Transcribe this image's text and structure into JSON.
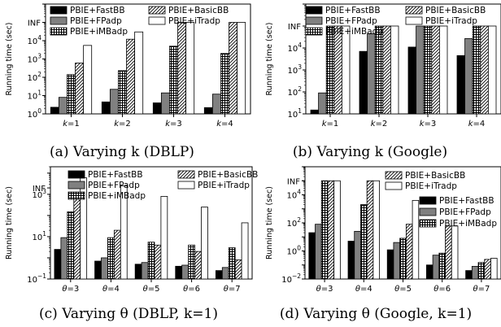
{
  "chart_data": [
    {
      "type": "bar",
      "caption": "(a) Varying k (DBLP)",
      "ylabel": "Running time (sec)",
      "yscale": "log",
      "ylim": [
        1,
        1000000
      ],
      "y_ticks": [
        "10^0",
        "10^1",
        "10^2",
        "10^3",
        "10^4"
      ],
      "y_special_label": "INF",
      "categories": [
        "k=1",
        "k=2",
        "k=3",
        "k=4"
      ],
      "series": [
        {
          "name": "PBIE+FastBB",
          "values": [
            2.3,
            4.5,
            4,
            2.2
          ]
        },
        {
          "name": "PBIE+FPadp",
          "values": [
            8,
            22,
            14,
            12
          ]
        },
        {
          "name": "PBIE+iMBadp",
          "values": [
            140,
            230,
            5000,
            2000
          ]
        },
        {
          "name": "PBIE+BasicBB",
          "values": [
            600,
            12000,
            "INF",
            "INF"
          ]
        },
        {
          "name": "PBIE+iTradp",
          "values": [
            5500,
            30000,
            "INF",
            "INF"
          ]
        }
      ],
      "legend": [
        "PBIE+FastBB",
        "PBIE+BasicBB",
        "PBIE+FPadp",
        "PBIE+iTradp",
        "PBIE+iMBadp"
      ],
      "legend_position": "top-left"
    },
    {
      "type": "bar",
      "caption": "(b) Varying k (Google)",
      "ylabel": "Running time (sec)",
      "yscale": "log",
      "ylim": [
        10,
        1000000
      ],
      "y_ticks": [
        "10^1",
        "10^2",
        "10^3",
        "10^4"
      ],
      "y_special_label": "INF",
      "categories": [
        "k=1",
        "k=2",
        "k=3",
        "k=4"
      ],
      "series": [
        {
          "name": "PBIE+FastBB",
          "values": [
            15,
            7000,
            11000,
            4500
          ]
        },
        {
          "name": "PBIE+FPadp",
          "values": [
            90,
            45000,
            "INF",
            27000
          ]
        },
        {
          "name": "PBIE+iMBadp",
          "values": [
            "INF",
            "INF",
            "INF",
            "INF"
          ]
        },
        {
          "name": "PBIE+BasicBB",
          "values": [
            "INF",
            "INF",
            "INF",
            "INF"
          ]
        },
        {
          "name": "PBIE+iTradp",
          "values": [
            "INF",
            "INF",
            "INF",
            "INF"
          ]
        }
      ],
      "legend": [
        "PBIE+FastBB",
        "PBIE+BasicBB",
        "PBIE+FPadp",
        "PBIE+iTradp",
        "PBIE+iMBadp"
      ],
      "legend_position": "top-left"
    },
    {
      "type": "bar",
      "caption": "(c) Varying θ (DBLP, k=1)",
      "ylabel": "Running time (sec)",
      "yscale": "log",
      "ylim": [
        0.1,
        20000
      ],
      "y_ticks": [
        "10^-1",
        "10^1",
        "10^3"
      ],
      "y_special_label": "INF",
      "categories": [
        "θ=3",
        "θ=4",
        "θ=5",
        "θ=6",
        "θ=7"
      ],
      "series": [
        {
          "name": "PBIE+FastBB",
          "values": [
            2.5,
            0.7,
            0.5,
            0.4,
            0.25
          ]
        },
        {
          "name": "PBIE+FPadp",
          "values": [
            9,
            1,
            0.6,
            0.45,
            0.35
          ]
        },
        {
          "name": "PBIE+iMBadp",
          "values": [
            150,
            9,
            5.5,
            4,
            3
          ]
        },
        {
          "name": "PBIE+BasicBB",
          "values": [
            700,
            20,
            4,
            2,
            0.8
          ]
        },
        {
          "name": "PBIE+iTradp",
          "values": [
            6000,
            2500,
            800,
            250,
            45
          ]
        }
      ],
      "legend": [
        "PBIE+FastBB",
        "PBIE+BasicBB",
        "PBIE+FPadp",
        "PBIE+iTradp",
        "PBIE+iMBadp"
      ],
      "legend_position": "top"
    },
    {
      "type": "bar",
      "caption": "(d) Varying θ (Google, k=1)",
      "ylabel": "Running time (sec)",
      "yscale": "log",
      "ylim": [
        0.01,
        1000000
      ],
      "y_ticks": [
        "10^-2",
        "10^0",
        "10^2",
        "10^4"
      ],
      "y_special_label": "INF",
      "categories": [
        "θ=3",
        "θ=4",
        "θ=5",
        "θ=6",
        "θ=7"
      ],
      "series": [
        {
          "name": "PBIE+FastBB",
          "values": [
            20,
            5,
            1.2,
            0.1,
            0.04
          ]
        },
        {
          "name": "PBIE+FPadp",
          "values": [
            80,
            25,
            4,
            0.5,
            0.08
          ]
        },
        {
          "name": "PBIE+iMBadp",
          "values": [
            "INF",
            2000,
            8,
            0.7,
            0.15
          ]
        },
        {
          "name": "PBIE+BasicBB",
          "values": [
            "INF",
            "INF",
            80,
            60,
            0.25
          ]
        },
        {
          "name": "PBIE+iTradp",
          "values": [
            "INF",
            "INF",
            4000,
            60,
            0.3
          ]
        }
      ],
      "legend": [
        "PBIE+BasicBB",
        "PBIE+iTradp",
        "PBIE+FastBB",
        "PBIE+FPadp",
        "PBIE+iMBadp"
      ],
      "legend_position": "top-right"
    }
  ]
}
